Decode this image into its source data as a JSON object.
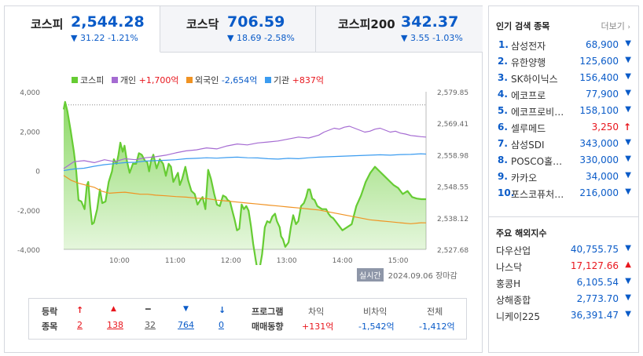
{
  "tabs": [
    {
      "name": "코스피",
      "price": "2,544.28",
      "change": "▼ 31.22 -1.21%"
    },
    {
      "name": "코스닥",
      "price": "706.59",
      "change": "▼ 18.69 -2.58%"
    },
    {
      "name": "코스피200",
      "price": "342.37",
      "change": "▼ 3.55 -1.03%"
    }
  ],
  "legend": {
    "kospi": {
      "label": "코스피"
    },
    "individual": {
      "label": "개인",
      "value": "+1,700억"
    },
    "foreign": {
      "label": "외국인",
      "value": "-2,654억"
    },
    "institution": {
      "label": "기관",
      "value": "+837억"
    }
  },
  "colors": {
    "kospi": "#66cc33",
    "individual": "#a56bd2",
    "foreign": "#f09323",
    "institution": "#3b9cf0",
    "up": "#e8161d",
    "down": "#0a5bc8"
  },
  "realtime": {
    "badge": "실시간",
    "date": "2024.09.06",
    "status": "장마감"
  },
  "chart_data": {
    "type": "line",
    "x_ticks": [
      "10:00",
      "11:00",
      "12:00",
      "13:00",
      "14:00",
      "15:00"
    ],
    "x_range": [
      "09:00",
      "15:30"
    ],
    "left_axis": {
      "ticks": [
        "4,000",
        "2,000",
        "0",
        "-2,000",
        "-4,000"
      ],
      "range": [
        -4000,
        4000
      ]
    },
    "right_axis": {
      "ticks": [
        "2,579.85",
        "2,569.41",
        "2,558.98",
        "2,548.55",
        "2,538.12",
        "2,527.68"
      ],
      "range": [
        2527.68,
        2579.85
      ]
    },
    "reference_line": 2575.5,
    "series": [
      {
        "name": "코스피",
        "axis": "right",
        "fill": true,
        "points": [
          [
            0,
            2574.0
          ],
          [
            3,
            2576.5
          ],
          [
            8,
            2573.5
          ],
          [
            15,
            2567.0
          ],
          [
            22,
            2560.0
          ],
          [
            27,
            2553.5
          ],
          [
            32,
            2544.0
          ],
          [
            38,
            2543.5
          ],
          [
            45,
            2541.0
          ],
          [
            50,
            2549.0
          ],
          [
            53,
            2550.0
          ],
          [
            57,
            2542.0
          ],
          [
            61,
            2536.0
          ],
          [
            65,
            2536.5
          ],
          [
            72,
            2541.0
          ],
          [
            78,
            2547.5
          ],
          [
            83,
            2543.0
          ],
          [
            90,
            2543.5
          ],
          [
            97,
            2550.0
          ],
          [
            104,
            2553.5
          ],
          [
            108,
            2557.5
          ],
          [
            114,
            2556.0
          ],
          [
            118,
            2559.0
          ],
          [
            122,
            2563.0
          ],
          [
            127,
            2560.0
          ],
          [
            131,
            2562.0
          ],
          [
            136,
            2557.0
          ],
          [
            142,
            2553.0
          ],
          [
            149,
            2556.0
          ],
          [
            156,
            2556.0
          ],
          [
            162,
            2559.5
          ],
          [
            168,
            2559.0
          ],
          [
            175,
            2557.0
          ],
          [
            180,
            2556.5
          ],
          [
            184,
            2553.5
          ],
          [
            188,
            2557.0
          ],
          [
            193,
            2559.0
          ],
          [
            200,
            2554.5
          ],
          [
            207,
            2557.5
          ],
          [
            214,
            2556.0
          ],
          [
            220,
            2552.0
          ],
          [
            226,
            2556.0
          ],
          [
            231,
            2555.0
          ],
          [
            236,
            2550.0
          ],
          [
            241,
            2551.5
          ],
          [
            246,
            2553.0
          ],
          [
            250,
            2549.0
          ],
          [
            255,
            2551.0
          ],
          [
            262,
            2555.0
          ],
          [
            268,
            2550.5
          ],
          [
            275,
            2547.0
          ],
          [
            282,
            2546.0
          ],
          [
            288,
            2542.5
          ],
          [
            294,
            2544.0
          ],
          [
            299,
            2545.0
          ],
          [
            305,
            2541.0
          ],
          [
            311,
            2554.0
          ],
          [
            317,
            2551.0
          ],
          [
            324,
            2546.0
          ],
          [
            330,
            2542.5
          ],
          [
            336,
            2542.0
          ],
          [
            343,
            2545.5
          ],
          [
            349,
            2545.0
          ],
          [
            353,
            2544.0
          ],
          [
            358,
            2543.5
          ],
          [
            363,
            2540.5
          ],
          [
            368,
            2537.5
          ],
          [
            373,
            2534.0
          ],
          [
            378,
            2534.5
          ],
          [
            383,
            2542.5
          ],
          [
            388,
            2541.0
          ],
          [
            393,
            2542.0
          ],
          [
            398,
            2540.5
          ],
          [
            403,
            2535.5
          ],
          [
            408,
            2529.5
          ],
          [
            413,
            2524.5
          ],
          [
            418,
            2520.0
          ],
          [
            422,
            2521.5
          ],
          [
            427,
            2526.0
          ],
          [
            433,
            2535.0
          ],
          [
            438,
            2537.0
          ],
          [
            444,
            2536.5
          ],
          [
            449,
            2538.5
          ],
          [
            455,
            2539.5
          ],
          [
            459,
            2537.0
          ],
          [
            465,
            2535.0
          ],
          [
            468,
            2532.0
          ],
          [
            472,
            2531.0
          ],
          [
            477,
            2528.5
          ],
          [
            484,
            2530.0
          ],
          [
            489,
            2535.0
          ],
          [
            494,
            2539.0
          ],
          [
            500,
            2536.0
          ],
          [
            505,
            2537.0
          ],
          [
            511,
            2542.0
          ],
          [
            517,
            2543.0
          ],
          [
            522,
            2545.0
          ],
          [
            526,
            2547.5
          ],
          [
            530,
            2547.5
          ],
          [
            535,
            2544.5
          ],
          [
            540,
            2544.0
          ],
          [
            546,
            2542.0
          ],
          [
            551,
            2541.5
          ],
          [
            556,
            2541.0
          ],
          [
            560,
            2541.0
          ],
          [
            565,
            2541.0
          ],
          [
            570,
            2539.5
          ],
          [
            575,
            2538.5
          ],
          [
            580,
            2538.0
          ],
          [
            585,
            2537.0
          ],
          [
            590,
            2536.0
          ],
          [
            600,
            2534.0
          ],
          [
            610,
            2535.0
          ],
          [
            620,
            2536.0
          ],
          [
            630,
            2542.0
          ],
          [
            640,
            2545.5
          ],
          [
            650,
            2550.0
          ],
          [
            660,
            2553.0
          ],
          [
            670,
            2555.0
          ],
          [
            680,
            2553.5
          ],
          [
            690,
            2552.0
          ],
          [
            700,
            2550.5
          ],
          [
            710,
            2549.0
          ],
          [
            720,
            2548.0
          ],
          [
            730,
            2546.0
          ],
          [
            740,
            2547.0
          ],
          [
            750,
            2545.0
          ],
          [
            760,
            2544.5
          ],
          [
            770,
            2544.3
          ],
          [
            780,
            2544.28
          ]
        ]
      },
      {
        "name": "개인",
        "axis": "left",
        "points": [
          [
            0,
            100
          ],
          [
            20,
            450
          ],
          [
            40,
            500
          ],
          [
            60,
            400
          ],
          [
            80,
            550
          ],
          [
            100,
            450
          ],
          [
            120,
            600
          ],
          [
            140,
            550
          ],
          [
            160,
            650
          ],
          [
            180,
            700
          ],
          [
            200,
            780
          ],
          [
            220,
            900
          ],
          [
            240,
            1000
          ],
          [
            260,
            1050
          ],
          [
            280,
            1150
          ],
          [
            300,
            1100
          ],
          [
            320,
            1250
          ],
          [
            340,
            1350
          ],
          [
            360,
            1300
          ],
          [
            380,
            1400
          ],
          [
            400,
            1450
          ],
          [
            420,
            1500
          ],
          [
            440,
            1600
          ],
          [
            460,
            1700
          ],
          [
            480,
            1650
          ],
          [
            500,
            1800
          ],
          [
            510,
            1950
          ],
          [
            520,
            2050
          ],
          [
            530,
            2150
          ],
          [
            540,
            2100
          ],
          [
            550,
            2200
          ],
          [
            560,
            2250
          ],
          [
            570,
            2150
          ],
          [
            580,
            2050
          ],
          [
            590,
            1950
          ],
          [
            600,
            2000
          ],
          [
            610,
            2100
          ],
          [
            620,
            2150
          ],
          [
            630,
            2050
          ],
          [
            640,
            1950
          ],
          [
            650,
            2000
          ],
          [
            660,
            1900
          ],
          [
            670,
            1850
          ],
          [
            680,
            1780
          ],
          [
            690,
            1750
          ],
          [
            700,
            1720
          ],
          [
            710,
            1700
          ]
        ]
      },
      {
        "name": "외국인",
        "axis": "left",
        "points": [
          [
            0,
            -250
          ],
          [
            15,
            -500
          ],
          [
            30,
            -650
          ],
          [
            45,
            -750
          ],
          [
            60,
            -850
          ],
          [
            75,
            -1050
          ],
          [
            90,
            -1150
          ],
          [
            105,
            -1120
          ],
          [
            120,
            -1100
          ],
          [
            135,
            -1150
          ],
          [
            150,
            -1200
          ],
          [
            165,
            -1200
          ],
          [
            180,
            -1250
          ],
          [
            200,
            -1280
          ],
          [
            220,
            -1320
          ],
          [
            240,
            -1350
          ],
          [
            260,
            -1400
          ],
          [
            280,
            -1420
          ],
          [
            300,
            -1500
          ],
          [
            320,
            -1550
          ],
          [
            340,
            -1600
          ],
          [
            360,
            -1650
          ],
          [
            380,
            -1700
          ],
          [
            400,
            -1750
          ],
          [
            420,
            -1800
          ],
          [
            440,
            -1850
          ],
          [
            460,
            -1900
          ],
          [
            480,
            -1950
          ],
          [
            500,
            -2000
          ],
          [
            520,
            -2100
          ],
          [
            540,
            -2200
          ],
          [
            560,
            -2300
          ],
          [
            580,
            -2400
          ],
          [
            600,
            -2500
          ],
          [
            620,
            -2550
          ],
          [
            640,
            -2600
          ],
          [
            660,
            -2650
          ],
          [
            680,
            -2700
          ],
          [
            700,
            -2650
          ],
          [
            710,
            -2654
          ]
        ]
      },
      {
        "name": "기관",
        "axis": "left",
        "points": [
          [
            0,
            0
          ],
          [
            20,
            80
          ],
          [
            40,
            120
          ],
          [
            60,
            220
          ],
          [
            80,
            300
          ],
          [
            100,
            350
          ],
          [
            120,
            400
          ],
          [
            140,
            420
          ],
          [
            160,
            480
          ],
          [
            180,
            500
          ],
          [
            200,
            520
          ],
          [
            220,
            550
          ],
          [
            240,
            600
          ],
          [
            260,
            620
          ],
          [
            280,
            650
          ],
          [
            300,
            630
          ],
          [
            320,
            660
          ],
          [
            340,
            680
          ],
          [
            360,
            650
          ],
          [
            380,
            640
          ],
          [
            400,
            600
          ],
          [
            420,
            580
          ],
          [
            440,
            620
          ],
          [
            460,
            600
          ],
          [
            480,
            650
          ],
          [
            500,
            680
          ],
          [
            520,
            700
          ],
          [
            540,
            720
          ],
          [
            560,
            740
          ],
          [
            580,
            760
          ],
          [
            600,
            780
          ],
          [
            620,
            800
          ],
          [
            640,
            780
          ],
          [
            660,
            810
          ],
          [
            680,
            820
          ],
          [
            700,
            850
          ],
          [
            710,
            837
          ]
        ]
      }
    ]
  },
  "trade": {
    "label_line1": "등락",
    "label_line2": "종목",
    "counts": [
      {
        "icon": "↑",
        "value": "2",
        "color": "up",
        "name": "upper-limit-count"
      },
      {
        "icon": "▲",
        "value": "138",
        "color": "up",
        "name": "rise-count"
      },
      {
        "icon": "━",
        "value": "32",
        "color": "neutral",
        "name": "flat-count"
      },
      {
        "icon": "▼",
        "value": "764",
        "color": "down",
        "name": "fall-count"
      },
      {
        "icon": "↓",
        "value": "0",
        "color": "down",
        "name": "lower-limit-count"
      }
    ],
    "program_line1": "프로그램",
    "program_line2": "매매동향",
    "program": [
      {
        "header": "차익",
        "value": "+131억",
        "color": "up"
      },
      {
        "header": "비차익",
        "value": "-1,542억",
        "color": "down"
      },
      {
        "header": "전체",
        "value": "-1,412억",
        "color": "down"
      }
    ]
  },
  "popular": {
    "title": "인기 검색 종목",
    "more": "더보기",
    "items": [
      {
        "rank": "1.",
        "name": "삼성전자",
        "price": "68,900",
        "dir": "down"
      },
      {
        "rank": "2.",
        "name": "유한양행",
        "price": "125,600",
        "dir": "down"
      },
      {
        "rank": "3.",
        "name": "SK하이닉스",
        "price": "156,400",
        "dir": "down"
      },
      {
        "rank": "4.",
        "name": "에코프로",
        "price": "77,900",
        "dir": "down"
      },
      {
        "rank": "5.",
        "name": "에코프로비…",
        "price": "158,100",
        "dir": "down"
      },
      {
        "rank": "6.",
        "name": "셀루메드",
        "price": "3,250",
        "dir": "upper"
      },
      {
        "rank": "7.",
        "name": "삼성SDI",
        "price": "343,000",
        "dir": "down"
      },
      {
        "rank": "8.",
        "name": "POSCO홀…",
        "price": "330,000",
        "dir": "down"
      },
      {
        "rank": "9.",
        "name": "카카오",
        "price": "34,000",
        "dir": "down"
      },
      {
        "rank": "10.",
        "name": "포스코퓨처…",
        "price": "216,000",
        "dir": "down"
      }
    ]
  },
  "overseas": {
    "title": "주요 해외지수",
    "items": [
      {
        "name": "다우산업",
        "price": "40,755.75",
        "dir": "down"
      },
      {
        "name": "나스닥",
        "price": "17,127.66",
        "dir": "up"
      },
      {
        "name": "홍콩H",
        "price": "6,105.54",
        "dir": "down"
      },
      {
        "name": "상해종합",
        "price": "2,773.70",
        "dir": "down"
      },
      {
        "name": "니케이225",
        "price": "36,391.47",
        "dir": "down"
      }
    ]
  }
}
